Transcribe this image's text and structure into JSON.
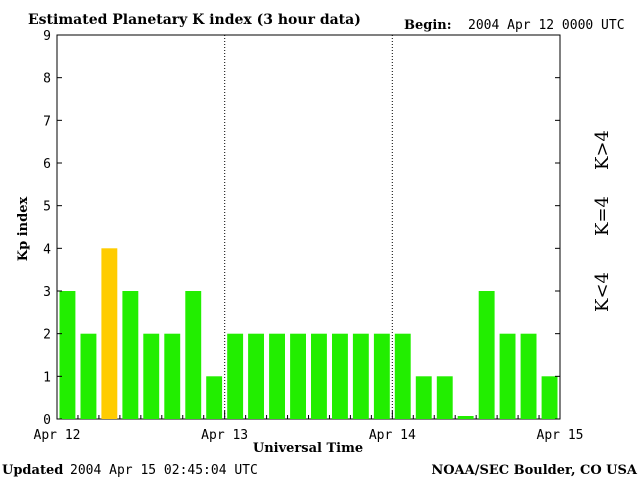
{
  "chart_data": {
    "type": "bar",
    "title": "Estimated Planetary K index (3 hour data)",
    "begin_label": "Begin:",
    "begin_value": "2004 Apr 12 0000 UTC",
    "xlabel": "Universal Time",
    "ylabel": "Kp index",
    "ylim": [
      0,
      9
    ],
    "yticks": [
      "0",
      "1",
      "2",
      "3",
      "4",
      "5",
      "6",
      "7",
      "8",
      "9"
    ],
    "xticks": [
      "Apr 12",
      "Apr 13",
      "Apr 14",
      "Apr 15"
    ],
    "values": [
      3,
      2,
      4,
      3,
      2,
      2,
      3,
      1,
      2,
      2,
      2,
      2,
      2,
      2,
      2,
      2,
      2,
      1,
      1,
      0.07,
      3,
      2,
      2,
      1
    ],
    "legend": [
      {
        "label": "K>4",
        "color": "#ff2200"
      },
      {
        "label": "K=4",
        "color": "#ffcc00"
      },
      {
        "label": "K<4",
        "color": "#22ee00"
      }
    ],
    "colors": {
      "below": "#22ee00",
      "equal": "#ffcc00",
      "above": "#ff2200"
    },
    "grid": false
  },
  "footer": {
    "updated_label": "Updated",
    "updated_value": "2004 Apr 15 02:45:04 UTC",
    "credit": "NOAA/SEC Boulder, CO USA"
  }
}
